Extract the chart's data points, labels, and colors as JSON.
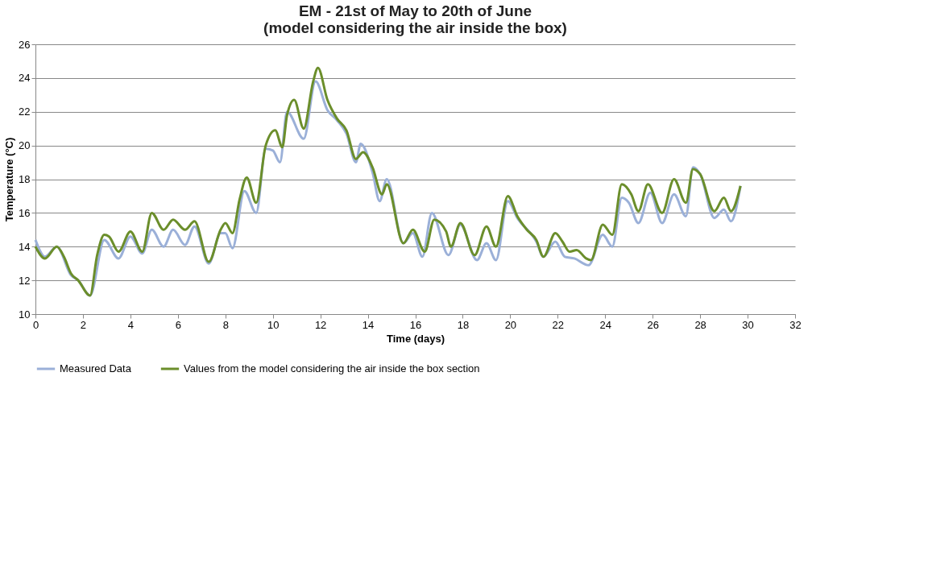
{
  "chart_data": {
    "type": "line",
    "title": [
      "EM - 21st of May to 20th of June",
      "(model considering the air inside the box)"
    ],
    "xlabel": "Time (days)",
    "ylabel": "Temperature (°C)",
    "xlim": [
      0,
      32
    ],
    "xticks": [
      0,
      2,
      4,
      6,
      8,
      10,
      12,
      14,
      16,
      18,
      20,
      22,
      24,
      26,
      28,
      30,
      32
    ],
    "ylim": [
      10,
      26
    ],
    "yticks": [
      10,
      12,
      14,
      16,
      18,
      20,
      22,
      24,
      26
    ],
    "grid": "y",
    "legend": "bottom",
    "marker": "none",
    "line_style": "solid",
    "series": [
      {
        "name": "Measured Data",
        "color": "#9bb0d8",
        "x": [
          0,
          0.4,
          0.9,
          1.5,
          1.8,
          2.3,
          2.9,
          3.5,
          4.0,
          4.5,
          4.9,
          5.4,
          5.8,
          6.3,
          6.7,
          7.3,
          7.8,
          8.0,
          8.3,
          8.8,
          9.3,
          9.7,
          10.0,
          10.3,
          10.6,
          11.3,
          11.8,
          12.3,
          12.7,
          13.1,
          13.5,
          13.7,
          14.2,
          14.5,
          14.8,
          15.5,
          15.9,
          16.3,
          16.7,
          17.4,
          17.9,
          18.6,
          19.0,
          19.4,
          19.9,
          20.3,
          21.1,
          21.4,
          21.9,
          22.3,
          22.7,
          23.3,
          23.9,
          24.3,
          24.7,
          25.0,
          25.4,
          25.9,
          26.4,
          26.9,
          27.4,
          27.7,
          28.0,
          28.6,
          29.0,
          29.3,
          29.7
        ],
        "values": [
          14.4,
          13.4,
          14.0,
          12.3,
          12.0,
          11.1,
          14.4,
          13.3,
          14.6,
          13.6,
          15.0,
          14.0,
          15.0,
          14.1,
          15.2,
          13.0,
          14.8,
          14.8,
          13.9,
          17.3,
          16.0,
          19.8,
          19.7,
          19.0,
          22.0,
          20.4,
          23.8,
          22.1,
          21.5,
          20.7,
          19.0,
          20.1,
          18.4,
          16.7,
          18.0,
          14.2,
          14.8,
          13.4,
          16.0,
          13.5,
          15.3,
          13.2,
          14.2,
          13.2,
          16.7,
          15.7,
          14.3,
          13.4,
          14.3,
          13.4,
          13.3,
          12.9,
          14.7,
          14.0,
          16.9,
          16.6,
          15.4,
          17.2,
          15.4,
          17.1,
          15.8,
          18.7,
          18.3,
          15.7,
          16.2,
          15.5,
          17.6
        ]
      },
      {
        "name": "Values from the model considering the air inside the box section",
        "color": "#6b8e2b",
        "x": [
          0,
          0.4,
          0.9,
          1.2,
          1.5,
          1.8,
          2.3,
          2.6,
          2.9,
          3.1,
          3.5,
          4.0,
          4.5,
          4.9,
          5.4,
          5.8,
          6.3,
          6.7,
          7.3,
          7.8,
          8.0,
          8.3,
          8.6,
          8.9,
          9.3,
          9.7,
          10.1,
          10.4,
          10.6,
          10.9,
          11.3,
          11.7,
          11.9,
          12.3,
          12.7,
          13.1,
          13.5,
          13.8,
          14.2,
          14.6,
          14.8,
          15.5,
          15.9,
          16.4,
          16.8,
          17.3,
          17.5,
          17.9,
          18.5,
          19.0,
          19.4,
          19.9,
          20.3,
          20.7,
          21.1,
          21.4,
          21.9,
          22.2,
          22.5,
          22.8,
          23.2,
          23.4,
          23.9,
          24.3,
          24.7,
          25.1,
          25.4,
          25.8,
          26.4,
          26.9,
          27.4,
          27.7,
          28.0,
          28.6,
          29.0,
          29.3,
          29.7
        ],
        "values": [
          14.0,
          13.3,
          14.0,
          13.4,
          12.4,
          12.0,
          11.1,
          13.5,
          14.7,
          14.6,
          13.7,
          14.9,
          13.7,
          16.0,
          15.0,
          15.6,
          15.0,
          15.5,
          13.1,
          15.0,
          15.4,
          14.8,
          16.8,
          18.1,
          16.6,
          20.0,
          20.9,
          19.9,
          21.8,
          22.7,
          21.0,
          23.8,
          24.6,
          22.7,
          21.6,
          20.9,
          19.2,
          19.6,
          18.7,
          17.1,
          17.7,
          14.2,
          15.0,
          13.7,
          15.6,
          14.9,
          14.0,
          15.4,
          13.5,
          15.2,
          14.0,
          17.0,
          15.8,
          15.0,
          14.4,
          13.4,
          14.8,
          14.3,
          13.7,
          13.8,
          13.3,
          13.2,
          15.3,
          14.7,
          17.7,
          17.1,
          16.1,
          17.7,
          16.0,
          18.0,
          16.6,
          18.6,
          18.3,
          16.1,
          16.9,
          16.1,
          17.6
        ]
      }
    ]
  }
}
